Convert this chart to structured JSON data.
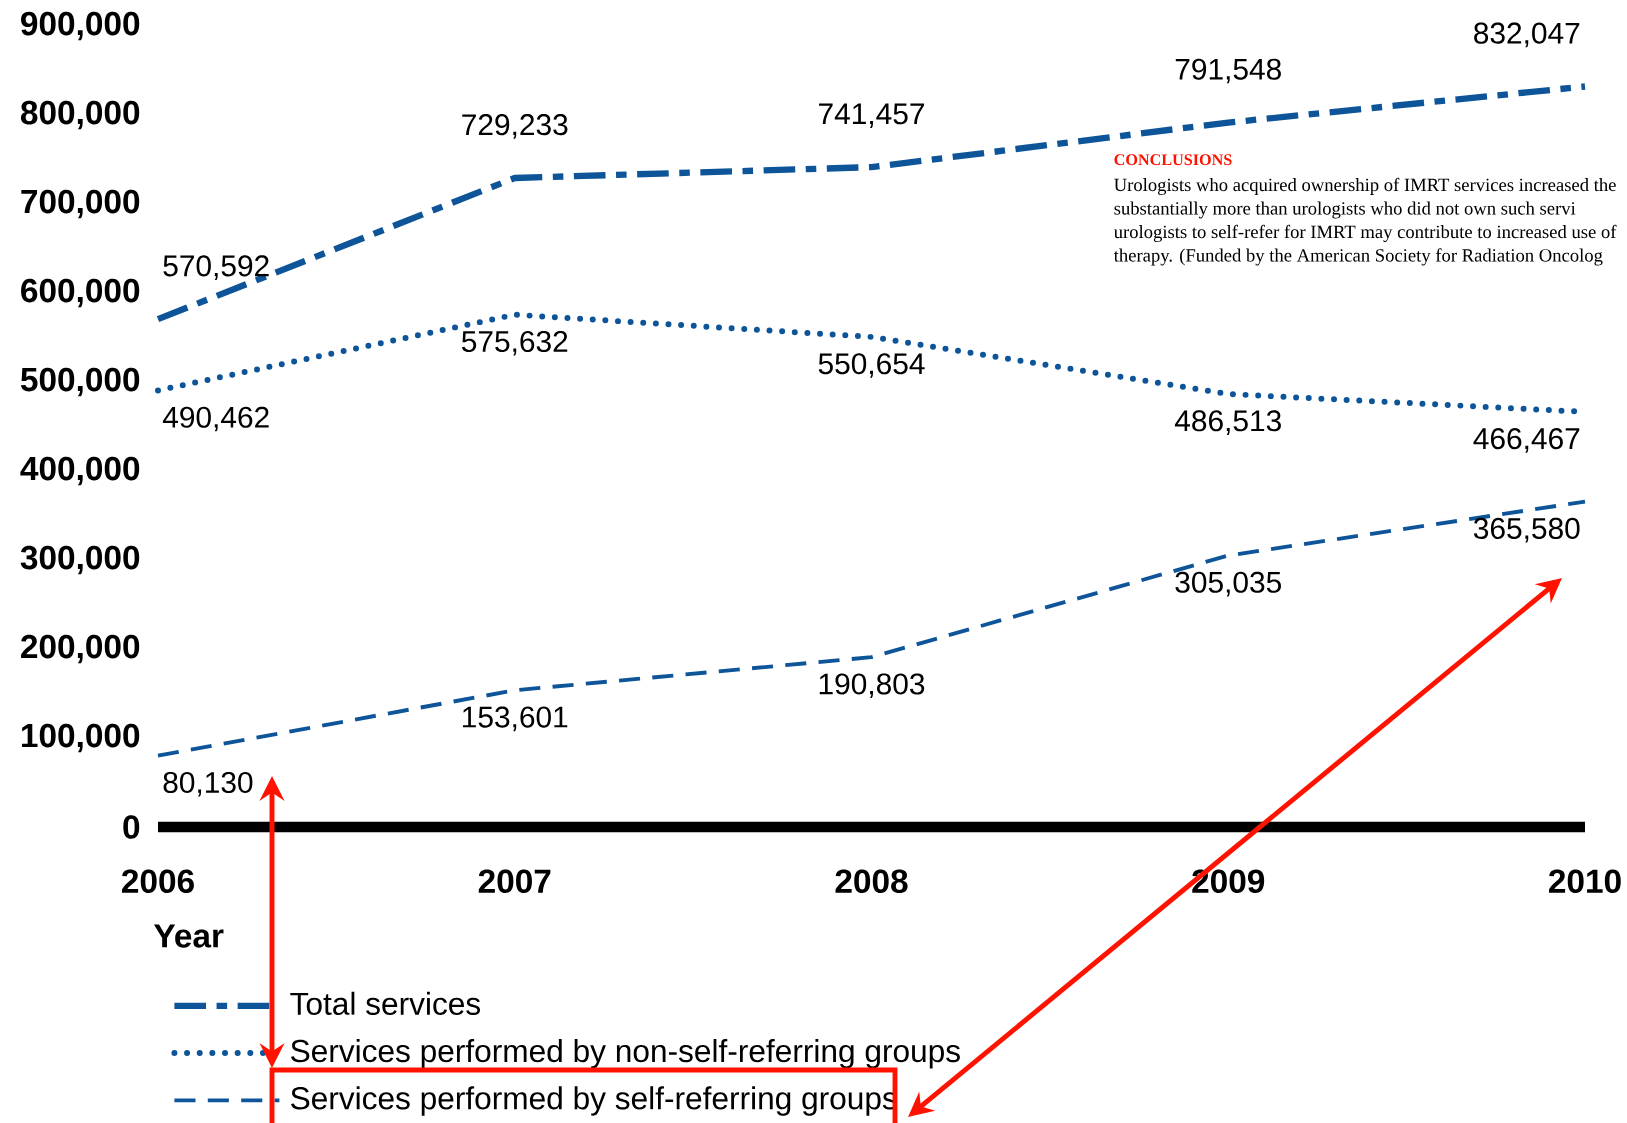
{
  "chart_data": {
    "type": "line",
    "xlabel": "Year",
    "x": [
      2006,
      2007,
      2008,
      2009,
      2010
    ],
    "xlim": [
      2006,
      2010
    ],
    "xticks": [
      2006,
      2007,
      2008,
      2009,
      2010
    ],
    "ylim": [
      0,
      900000
    ],
    "yticks": [
      0,
      {
        "value": 100000,
        "label": "100,000"
      },
      {
        "value": 200000,
        "label": "200,000"
      },
      {
        "value": 300000,
        "label": "300,000"
      },
      {
        "value": 400000,
        "label": "400,000"
      },
      {
        "value": 500000,
        "label": "500,000"
      },
      {
        "value": 600000,
        "label": "600,000"
      },
      {
        "value": 700000,
        "label": "700,000"
      },
      {
        "value": 800000,
        "label": "800,000"
      },
      {
        "value": 900000,
        "label": "900,000"
      }
    ],
    "series": [
      {
        "name": "Total services",
        "color": "#0d5499",
        "line_style": "dashdot",
        "values": [
          570592,
          729233,
          741457,
          791548,
          832047
        ],
        "value_labels": [
          "570,592",
          "729,233",
          "741,457",
          "791,548",
          "832,047"
        ]
      },
      {
        "name": "Services performed by non-self-referring groups",
        "color": "#0d5499",
        "line_style": "dotted",
        "values": [
          490462,
          575632,
          550654,
          486513,
          466467
        ],
        "value_labels": [
          "490,462",
          "575,632",
          "550,654",
          "486,513",
          "466,467"
        ]
      },
      {
        "name": "Services performed by self-referring groups",
        "color": "#0d5499",
        "line_style": "dashed",
        "values": [
          80130,
          153601,
          190803,
          305035,
          365580
        ],
        "value_labels": [
          "80,130",
          "153,601",
          "190,803",
          "305,035",
          "365,580"
        ]
      }
    ],
    "legend": "bottom",
    "grid": false,
    "annotations": [
      "CONCLUSIONS",
      "Urologists who acquired ownership of IMRT services increased the",
      "substantially more than urologists who did not own such servi",
      "urologists to self-refer for IMRT may contribute to increased use of",
      "therapy. (Funded by the American Society for Radiation Oncolog"
    ]
  }
}
